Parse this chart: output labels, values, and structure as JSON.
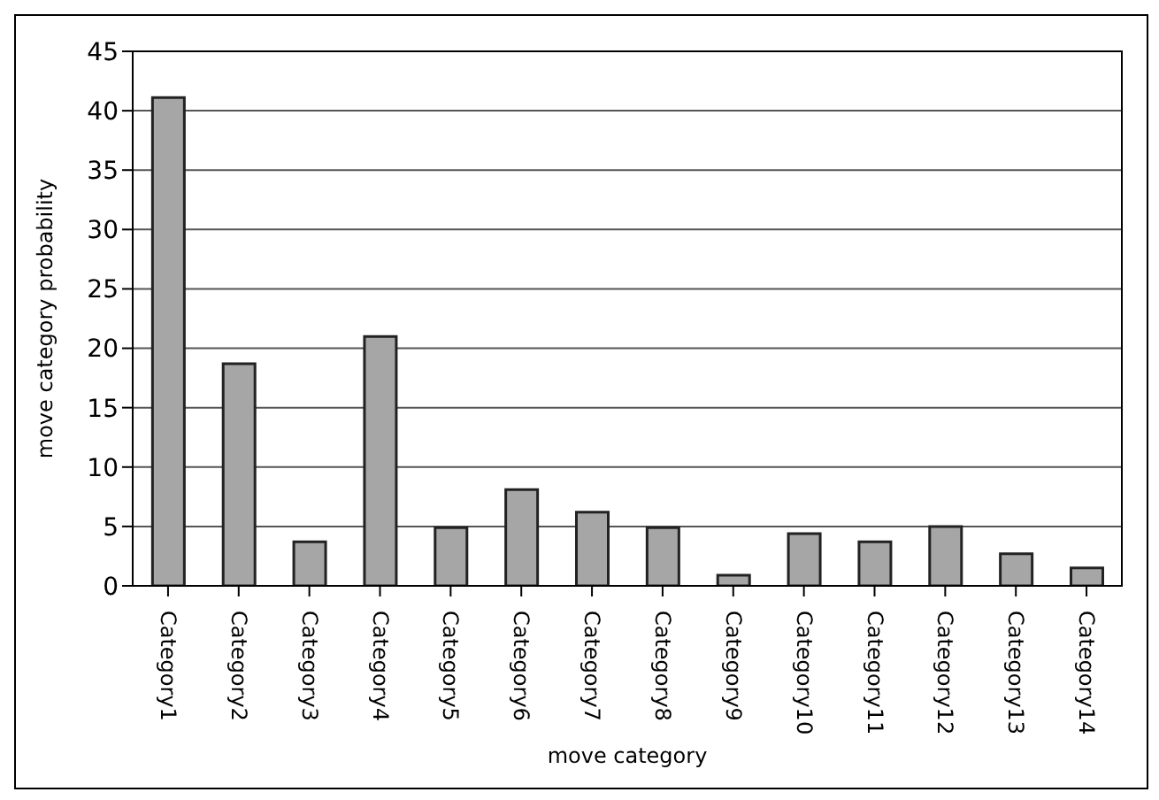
{
  "chart_data": {
    "type": "bar",
    "xlabel": "move category",
    "ylabel": "move category probability",
    "categories": [
      "Category1",
      "Category2",
      "Category3",
      "Category4",
      "Category5",
      "Category6",
      "Category7",
      "Category8",
      "Category9",
      "Category10",
      "Category11",
      "Category12",
      "Category13",
      "Category14"
    ],
    "values": [
      41.1,
      18.7,
      3.7,
      21.0,
      4.9,
      8.1,
      6.2,
      4.9,
      0.9,
      4.4,
      3.7,
      5.0,
      2.7,
      1.5
    ],
    "color": "#a6a6a6",
    "ylim": [
      0,
      45
    ],
    "yticks": [
      0,
      5,
      10,
      15,
      20,
      25,
      30,
      35,
      40,
      45
    ],
    "grid": "y",
    "legend": false
  }
}
